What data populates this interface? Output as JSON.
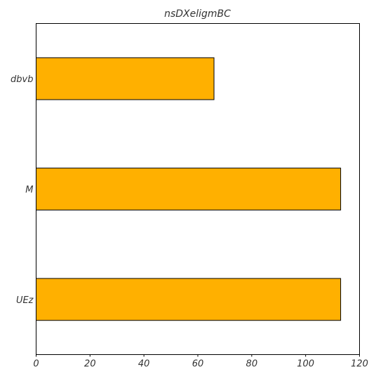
{
  "chart_data": {
    "type": "bar",
    "orientation": "horizontal",
    "title": "nsDXeligmBC",
    "xlabel": "",
    "ylabel": "",
    "categories": [
      "dbvb",
      "M",
      "UEz"
    ],
    "values": [
      66,
      113,
      113
    ],
    "xlim": [
      0,
      120
    ],
    "xticks": [
      "0",
      "20",
      "40",
      "60",
      "80",
      "100",
      "120"
    ],
    "grid": false,
    "bar_color": "#ffb000",
    "bar_edge_color": "#000000"
  }
}
